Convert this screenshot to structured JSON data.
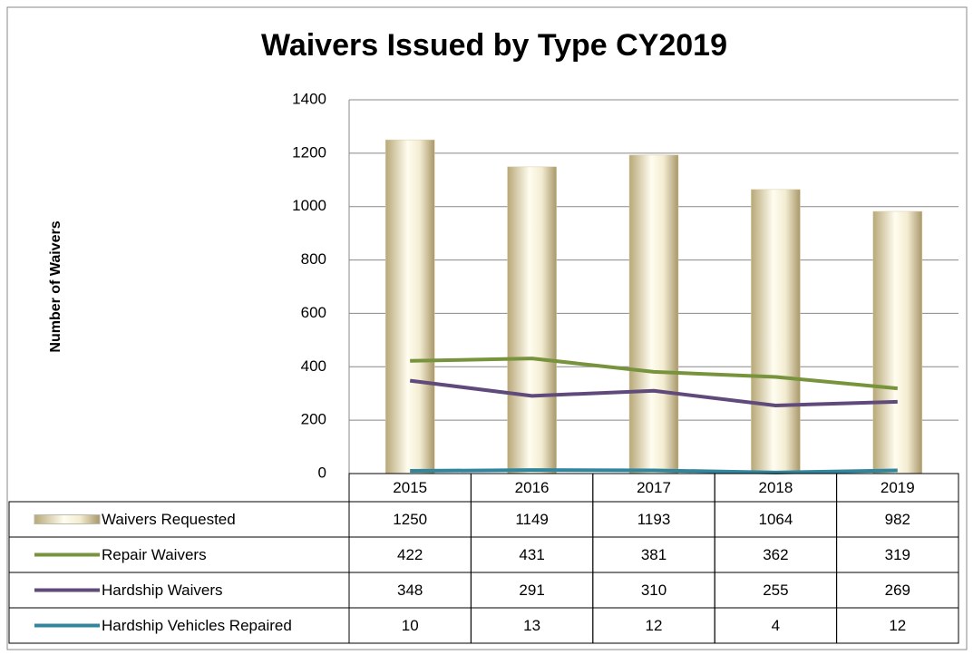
{
  "chart_data": {
    "type": "bar",
    "title": "Waivers Issued by Type CY2019",
    "y_label": "Number of Waivers",
    "categories": [
      "2015",
      "2016",
      "2017",
      "2018",
      "2019"
    ],
    "series": [
      {
        "name": "Waivers Requested",
        "type": "bar",
        "color": "#efe6c6",
        "values": [
          1250,
          1149,
          1193,
          1064,
          982
        ]
      },
      {
        "name": "Repair Waivers",
        "type": "line",
        "color": "#77933c",
        "values": [
          422,
          431,
          381,
          362,
          319
        ]
      },
      {
        "name": "Hardship Waivers",
        "type": "line",
        "color": "#604a7b",
        "values": [
          348,
          291,
          310,
          255,
          269
        ]
      },
      {
        "name": "Hardship Vehicles Repaired",
        "type": "line",
        "color": "#31859c",
        "values": [
          10,
          13,
          12,
          4,
          12
        ]
      }
    ],
    "ylim": [
      0,
      1400
    ],
    "yticks": [
      0,
      200,
      400,
      600,
      800,
      1000,
      1200,
      1400
    ],
    "grid": true
  }
}
